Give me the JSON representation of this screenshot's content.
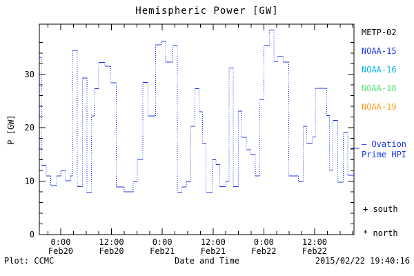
{
  "title": "Hemispheric Power [GW]",
  "footer": {
    "plot_credit": "Plot: CCMC",
    "timestamp": "2015/02/22 19:40:16"
  },
  "legend": {
    "satellites": [
      {
        "label": "METP-02",
        "color": "#000000"
      },
      {
        "label": "NOAA-15",
        "color": "#1a35f0"
      },
      {
        "label": "NOAA-16",
        "color": "#00b4f0"
      },
      {
        "label": "NOAA-18",
        "color": "#55e673"
      },
      {
        "label": "NOAA-19",
        "color": "#ffa01e"
      }
    ],
    "line_entry": {
      "label_line1": "— Ovation",
      "label_line2": "Prime HPI",
      "color": "#1a35f0"
    },
    "markers": [
      {
        "symbol": "+",
        "label": "south"
      },
      {
        "symbol": "*",
        "label": "north"
      }
    ]
  },
  "chart_data": {
    "type": "line",
    "subtype": "step-post, solid horizontals with dotted vertical connectors",
    "title": "Hemispheric Power [GW]",
    "xlabel": "Date and Time",
    "ylabel": "P [GW]",
    "series_name": "Ovation Prime HPI",
    "line_color": "#1a35f0",
    "x_unit": "hours since 2015-02-20 00:00 UT",
    "xlim": [
      -5.05,
      69.3
    ],
    "ylim": [
      0,
      39.4
    ],
    "y_major_ticks": [
      0,
      10,
      20,
      30
    ],
    "y_minor_step": 2,
    "x_minor_step": 3,
    "x_major_ticks": [
      {
        "t": 0,
        "line1": "0:00",
        "line2": "Feb20"
      },
      {
        "t": 12,
        "line1": "12:00",
        "line2": "Feb20"
      },
      {
        "t": 24,
        "line1": "0:00",
        "line2": "Feb21"
      },
      {
        "t": 36,
        "line1": "12:00",
        "line2": "Feb21"
      },
      {
        "t": 48,
        "line1": "0:00",
        "line2": "Feb22"
      },
      {
        "t": 60,
        "line1": "12:00",
        "line2": "Feb22"
      }
    ],
    "steps": [
      [
        -5.05,
        33.2
      ],
      [
        -4.6,
        13.0
      ],
      [
        -3.4,
        11.0
      ],
      [
        -2.4,
        9.2
      ],
      [
        -1.0,
        11.0
      ],
      [
        0.0,
        12.0
      ],
      [
        1.1,
        10.1
      ],
      [
        2.3,
        11.0
      ],
      [
        2.8,
        34.5
      ],
      [
        3.9,
        9.0
      ],
      [
        5.1,
        29.3
      ],
      [
        6.2,
        7.9
      ],
      [
        7.3,
        22.2
      ],
      [
        8.0,
        27.3
      ],
      [
        9.0,
        32.2
      ],
      [
        10.4,
        31.5
      ],
      [
        11.8,
        28.4
      ],
      [
        13.1,
        8.9
      ],
      [
        15.0,
        8.0
      ],
      [
        17.1,
        9.9
      ],
      [
        18.1,
        14.1
      ],
      [
        19.4,
        28.5
      ],
      [
        20.6,
        22.2
      ],
      [
        22.4,
        35.5
      ],
      [
        23.7,
        36.2
      ],
      [
        24.8,
        32.3
      ],
      [
        26.4,
        35.4
      ],
      [
        27.6,
        7.9
      ],
      [
        28.6,
        8.9
      ],
      [
        29.7,
        9.9
      ],
      [
        30.7,
        20.3
      ],
      [
        31.7,
        27.3
      ],
      [
        32.7,
        23.0
      ],
      [
        33.5,
        17.1
      ],
      [
        34.3,
        7.9
      ],
      [
        35.8,
        14.0
      ],
      [
        36.7,
        13.1
      ],
      [
        37.6,
        9.0
      ],
      [
        39.0,
        10.0
      ],
      [
        39.8,
        31.2
      ],
      [
        40.8,
        9.0
      ],
      [
        42.0,
        23.1
      ],
      [
        42.8,
        18.2
      ],
      [
        43.9,
        15.9
      ],
      [
        44.9,
        15.0
      ],
      [
        46.0,
        11.0
      ],
      [
        47.0,
        25.3
      ],
      [
        48.0,
        35.4
      ],
      [
        49.3,
        38.3
      ],
      [
        50.4,
        32.4
      ],
      [
        51.3,
        33.3
      ],
      [
        52.6,
        32.3
      ],
      [
        53.9,
        11.0
      ],
      [
        56.2,
        9.9
      ],
      [
        57.3,
        20.3
      ],
      [
        58.1,
        17.1
      ],
      [
        59.4,
        18.3
      ],
      [
        60.2,
        27.4
      ],
      [
        62.9,
        22.3
      ],
      [
        63.5,
        12.1
      ],
      [
        64.3,
        21.4
      ],
      [
        65.5,
        9.8
      ],
      [
        66.8,
        19.2
      ],
      [
        67.8,
        11.1
      ]
    ]
  }
}
